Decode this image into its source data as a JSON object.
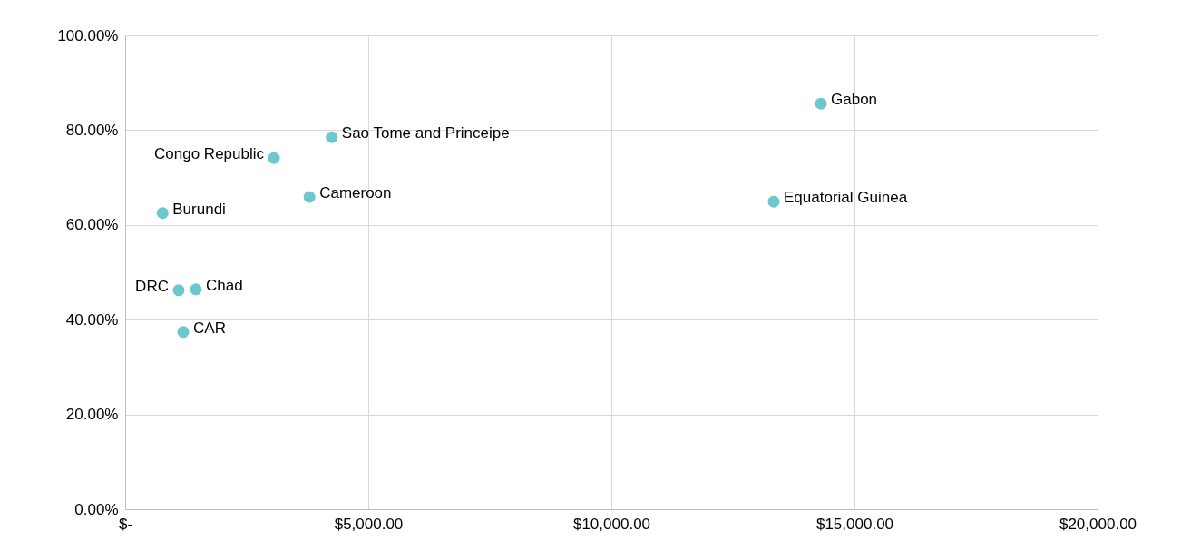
{
  "chart_data": {
    "type": "scatter",
    "marker": "circle",
    "grid": true,
    "series": [
      {
        "color": "#6bc9cd",
        "x": [
          770,
          3060,
          4250,
          3790,
          1455,
          1100,
          1195,
          14310,
          13340
        ],
        "values": [
          62.5,
          74.1,
          78.5,
          65.9,
          46.4,
          46.2,
          37.4,
          85.6,
          64.9
        ]
      }
    ],
    "annotations": [
      {
        "text": "Burundi",
        "x": 770,
        "y": 62.5
      },
      {
        "text": "Congo Republic",
        "x": 3060,
        "y": 74.1
      },
      {
        "text": "Sao Tome and Princeipe",
        "x": 4250,
        "y": 78.5
      },
      {
        "text": "Cameroon",
        "x": 3790,
        "y": 65.9
      },
      {
        "text": "Chad",
        "x": 1455,
        "y": 46.4
      },
      {
        "text": "DRC",
        "x": 1100,
        "y": 46.2
      },
      {
        "text": "CAR",
        "x": 1195,
        "y": 37.4
      },
      {
        "text": "Gabon",
        "x": 14310,
        "y": 85.6
      },
      {
        "text": "Equatorial Guinea",
        "x": 13340,
        "y": 64.9
      }
    ],
    "xlim": [
      0,
      20000
    ],
    "xticks": [
      {
        "value": 0,
        "label": "$-"
      },
      {
        "value": 5000,
        "label": "$5,000.00"
      },
      {
        "value": 10000,
        "label": "$10,000.00"
      },
      {
        "value": 15000,
        "label": "$15,000.00"
      },
      {
        "value": 20000,
        "label": "$20,000.00"
      }
    ],
    "ylim": [
      0,
      100
    ],
    "yticks": [
      {
        "value": 0,
        "label": "0.00%"
      },
      {
        "value": 20,
        "label": "20.00%"
      },
      {
        "value": 40,
        "label": "40.00%"
      },
      {
        "value": 60,
        "label": "60.00%"
      },
      {
        "value": 80,
        "label": "80.00%"
      },
      {
        "value": 100,
        "label": "100.00%"
      }
    ]
  }
}
